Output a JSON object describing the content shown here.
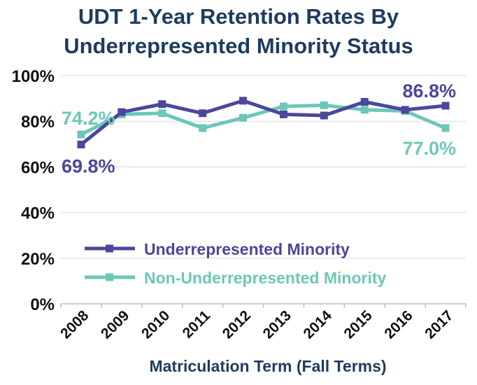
{
  "chart_data": {
    "type": "line",
    "title_line1": "UDT 1-Year Retention Rates By",
    "title_line2": "Underrepresented Minority Status",
    "xlabel": "Matriculation Term (Fall Terms)",
    "ylabel": "",
    "categories": [
      "2008",
      "2009",
      "2010",
      "2011",
      "2012",
      "2013",
      "2014",
      "2015",
      "2016",
      "2017"
    ],
    "ylim": [
      0,
      100
    ],
    "yticks": [
      "0%",
      "20%",
      "40%",
      "60%",
      "80%",
      "100%"
    ],
    "grid": "horizontal",
    "legend_position": "center",
    "series": [
      {
        "name": "Underrepresented Minority",
        "color": "#4b479b",
        "marker": "square",
        "values": [
          69.8,
          84.0,
          87.5,
          83.5,
          89.0,
          83.0,
          82.5,
          88.5,
          85.0,
          86.8
        ]
      },
      {
        "name": "Non-Underrepresented Minority",
        "color": "#6cc7b8",
        "marker": "square",
        "values": [
          74.2,
          83.0,
          83.5,
          77.0,
          81.5,
          86.5,
          87.0,
          85.0,
          84.5,
          77.0
        ]
      }
    ],
    "annotations": [
      {
        "text": "74.2%",
        "series": 1,
        "index": 0
      },
      {
        "text": "69.8%",
        "series": 0,
        "index": 0
      },
      {
        "text": "86.8%",
        "series": 0,
        "index": 9
      },
      {
        "text": "77.0%",
        "series": 1,
        "index": 9
      }
    ]
  }
}
